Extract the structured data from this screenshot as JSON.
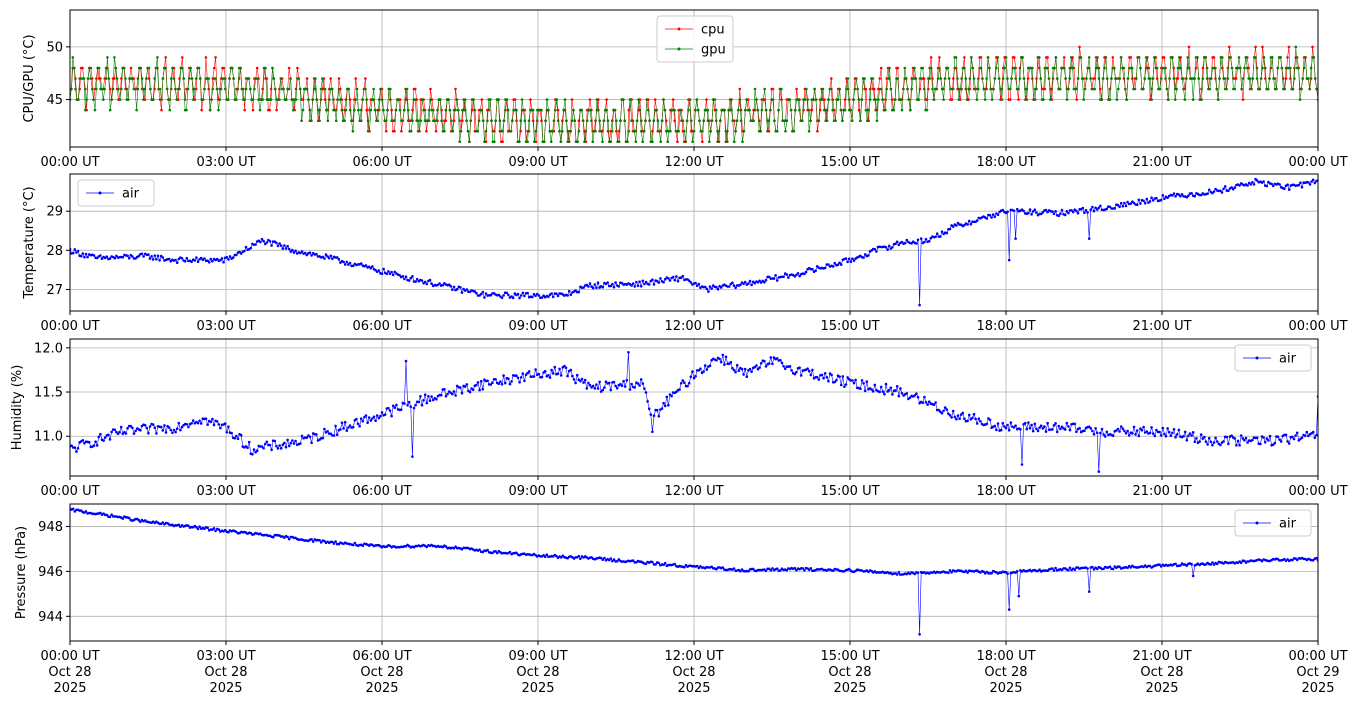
{
  "colors": {
    "cpu": "#ff0000",
    "gpu": "#008000",
    "air": "#0000ff",
    "grid": "#b0b0b0"
  },
  "chart_data": [
    {
      "type": "line",
      "ylabel": "CPU/GPU (°C)",
      "ylim": [
        40.5,
        53.5
      ],
      "yticks": [
        45,
        50
      ],
      "xlim_hours": [
        0,
        24
      ],
      "xticks": [
        "00:00 UT",
        "03:00 UT",
        "06:00 UT",
        "09:00 UT",
        "12:00 UT",
        "15:00 UT",
        "18:00 UT",
        "21:00 UT",
        "00:00 UT"
      ],
      "grid": true,
      "legend": "top-center",
      "series": [
        {
          "name": "cpu",
          "color": "#ff0000",
          "trend": [
            [
              0,
              47
            ],
            [
              3,
              47
            ],
            [
              5.5,
              45
            ],
            [
              8,
              43.5
            ],
            [
              10,
              43.2
            ],
            [
              12,
              43.5
            ],
            [
              14,
              44.5
            ],
            [
              16.5,
              47
            ],
            [
              18,
              47.5
            ],
            [
              21,
              47.8
            ],
            [
              24,
              48
            ]
          ],
          "amplitude": 3.6
        },
        {
          "name": "gpu",
          "color": "#008000",
          "trend": [
            [
              0,
              46.8
            ],
            [
              3,
              46.8
            ],
            [
              5.5,
              44.8
            ],
            [
              8,
              43.3
            ],
            [
              10,
              43
            ],
            [
              12,
              43.3
            ],
            [
              14,
              44.3
            ],
            [
              16.5,
              46.8
            ],
            [
              18,
              47.3
            ],
            [
              21,
              47.6
            ],
            [
              24,
              47.8
            ]
          ],
          "amplitude": 3.4
        }
      ]
    },
    {
      "type": "line",
      "ylabel": "Temperature (°C)",
      "ylim": [
        26.45,
        29.95
      ],
      "yticks": [
        27,
        28,
        29
      ],
      "xlim_hours": [
        0,
        24
      ],
      "xticks": [
        "00:00 UT",
        "03:00 UT",
        "06:00 UT",
        "09:00 UT",
        "12:00 UT",
        "15:00 UT",
        "18:00 UT",
        "21:00 UT",
        "00:00 UT"
      ],
      "grid": true,
      "legend": "top-left",
      "series": [
        {
          "name": "air",
          "color": "#0000ff",
          "trend": [
            [
              0,
              28.0
            ],
            [
              0.5,
              27.8
            ],
            [
              1.5,
              27.85
            ],
            [
              2,
              27.75
            ],
            [
              3,
              27.75
            ],
            [
              3.7,
              28.25
            ],
            [
              4.3,
              28.0
            ],
            [
              5,
              27.8
            ],
            [
              6.5,
              27.3
            ],
            [
              8,
              26.85
            ],
            [
              9.5,
              26.85
            ],
            [
              10,
              27.1
            ],
            [
              11,
              27.15
            ],
            [
              11.8,
              27.3
            ],
            [
              12.2,
              27.0
            ],
            [
              13,
              27.15
            ],
            [
              14,
              27.4
            ],
            [
              15,
              27.75
            ],
            [
              15.5,
              28.0
            ],
            [
              16,
              28.2
            ],
            [
              16.5,
              28.25
            ],
            [
              17,
              28.6
            ],
            [
              17.5,
              28.8
            ],
            [
              18,
              29.0
            ],
            [
              19,
              28.95
            ],
            [
              20,
              29.1
            ],
            [
              21,
              29.35
            ],
            [
              22,
              29.5
            ],
            [
              22.8,
              29.75
            ],
            [
              23.5,
              29.6
            ],
            [
              24,
              29.8
            ]
          ],
          "noise": 0.07,
          "spikes": [
            [
              16.35,
              26.6
            ],
            [
              18.05,
              27.75
            ],
            [
              18.2,
              28.3
            ],
            [
              19.6,
              28.3
            ]
          ]
        }
      ]
    },
    {
      "type": "line",
      "ylabel": "Humidity (%)",
      "ylim": [
        10.55,
        12.1
      ],
      "yticks": [
        11.0,
        11.5,
        12.0
      ],
      "xlim_hours": [
        0,
        24
      ],
      "xticks": [
        "00:00 UT",
        "03:00 UT",
        "06:00 UT",
        "09:00 UT",
        "12:00 UT",
        "15:00 UT",
        "18:00 UT",
        "21:00 UT",
        "00:00 UT"
      ],
      "grid": true,
      "legend": "top-right",
      "series": [
        {
          "name": "air",
          "color": "#0000ff",
          "trend": [
            [
              0,
              10.85
            ],
            [
              1,
              11.05
            ],
            [
              2,
              11.1
            ],
            [
              2.5,
              11.2
            ],
            [
              3,
              11.1
            ],
            [
              3.5,
              10.85
            ],
            [
              4.5,
              10.95
            ],
            [
              5.5,
              11.15
            ],
            [
              6,
              11.25
            ],
            [
              7,
              11.45
            ],
            [
              8,
              11.6
            ],
            [
              9,
              11.7
            ],
            [
              9.5,
              11.75
            ],
            [
              10,
              11.55
            ],
            [
              11,
              11.6
            ],
            [
              11.2,
              11.2
            ],
            [
              11.5,
              11.4
            ],
            [
              12,
              11.7
            ],
            [
              12.5,
              11.9
            ],
            [
              13,
              11.7
            ],
            [
              13.5,
              11.85
            ],
            [
              14,
              11.75
            ],
            [
              15,
              11.6
            ],
            [
              16,
              11.5
            ],
            [
              17,
              11.25
            ],
            [
              18,
              11.1
            ],
            [
              19,
              11.1
            ],
            [
              20,
              11.05
            ],
            [
              21,
              11.05
            ],
            [
              22,
              10.95
            ],
            [
              23,
              10.95
            ],
            [
              24,
              11.0
            ]
          ],
          "noise": 0.06,
          "spikes": [
            [
              6.45,
              11.85
            ],
            [
              6.6,
              10.77
            ],
            [
              10.75,
              11.95
            ],
            [
              11.2,
              11.05
            ],
            [
              18.3,
              10.68
            ],
            [
              19.8,
              10.6
            ],
            [
              24,
              11.45
            ]
          ]
        }
      ]
    },
    {
      "type": "line",
      "ylabel": "Pressure (hPa)",
      "ylim": [
        942.9,
        949.0
      ],
      "yticks": [
        944,
        946,
        948
      ],
      "xlim_hours": [
        0,
        24
      ],
      "xticks": [
        "00:00 UT",
        "03:00 UT",
        "06:00 UT",
        "09:00 UT",
        "12:00 UT",
        "15:00 UT",
        "18:00 UT",
        "21:00 UT",
        "00:00 UT"
      ],
      "xtick_dates": [
        "Oct 28",
        "Oct 28",
        "Oct 28",
        "Oct 28",
        "Oct 28",
        "Oct 28",
        "Oct 28",
        "Oct 28",
        "Oct 29"
      ],
      "xtick_years": [
        "2025",
        "2025",
        "2025",
        "2025",
        "2025",
        "2025",
        "2025",
        "2025",
        "2025"
      ],
      "grid": true,
      "legend": "top-right",
      "series": [
        {
          "name": "air",
          "color": "#0000ff",
          "trend": [
            [
              0,
              948.75
            ],
            [
              1,
              948.4
            ],
            [
              1.5,
              948.2
            ],
            [
              3,
              947.8
            ],
            [
              4,
              947.55
            ],
            [
              5,
              947.3
            ],
            [
              6,
              947.1
            ],
            [
              7,
              947.15
            ],
            [
              8,
              946.9
            ],
            [
              9,
              946.7
            ],
            [
              10,
              946.6
            ],
            [
              11,
              946.4
            ],
            [
              12,
              946.2
            ],
            [
              13,
              946.05
            ],
            [
              14,
              946.1
            ],
            [
              15,
              946.05
            ],
            [
              16,
              945.9
            ],
            [
              17,
              946.0
            ],
            [
              18,
              945.95
            ],
            [
              19,
              946.1
            ],
            [
              20,
              946.15
            ],
            [
              21,
              946.25
            ],
            [
              22,
              946.35
            ],
            [
              23,
              946.5
            ],
            [
              24,
              946.55
            ]
          ],
          "noise": 0.06,
          "spikes": [
            [
              16.35,
              943.2
            ],
            [
              18.05,
              944.3
            ],
            [
              18.25,
              944.9
            ],
            [
              19.6,
              945.1
            ],
            [
              21.6,
              945.8
            ]
          ]
        }
      ]
    }
  ]
}
